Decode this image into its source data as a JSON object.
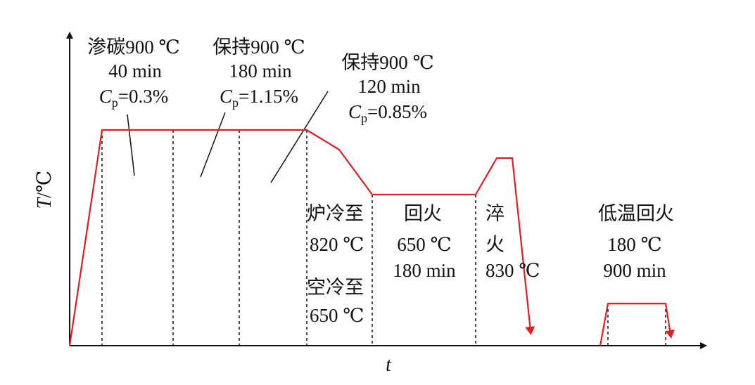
{
  "axes": {
    "y_symbol": "T",
    "y_unit": "/℃",
    "x_symbol": "t"
  },
  "colors": {
    "curve": "#e02020",
    "ink": "#111111"
  },
  "stages": {
    "carburize": {
      "line1": "渗碳900 ℃",
      "line2": "40 min",
      "cp_symbol": "C",
      "cp_sub": "p",
      "cp_value": "=0.3%"
    },
    "hold1": {
      "line1": "保持900 ℃",
      "line2": "180 min",
      "cp_symbol": "C",
      "cp_sub": "p",
      "cp_value": "=1.15%"
    },
    "hold2": {
      "line1": "保持900 ℃",
      "line2": "120 min",
      "cp_symbol": "C",
      "cp_sub": "p",
      "cp_value": "=0.85%"
    },
    "furnace_cool": {
      "line1": "炉冷至",
      "line2": "820 ℃"
    },
    "air_cool": {
      "line1": "空冷至",
      "line2": "650 ℃"
    },
    "temper": {
      "line1": "回火",
      "line2": "650 ℃",
      "line3": "180 min"
    },
    "quench": {
      "line1": "淬",
      "line2": "火",
      "line3": "830 ℃"
    },
    "low_temper": {
      "line1": "低温回火",
      "line2": "180 ℃",
      "line3": "900 min"
    }
  }
}
